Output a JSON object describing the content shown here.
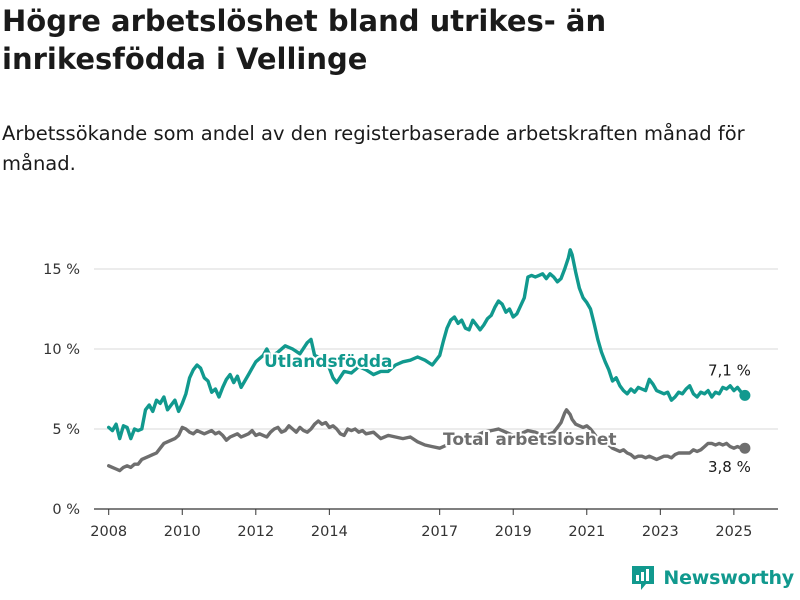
{
  "header": {
    "title": "Högre arbetslöshet bland utrikes- än inrikesfödda i Vellinge",
    "subtitle": "Arbetssökande som andel av den registerbaserade arbetskraften månad för månad."
  },
  "brand": {
    "name": "Newsworthy",
    "icon": "newsworthy-logo-icon"
  },
  "chart_data": {
    "type": "line",
    "title": "Högre arbetslöshet bland utrikes- än inrikesfödda i Vellinge",
    "subtitle": "Arbetssökande som andel av den registerbaserade arbetskraften månad för månad.",
    "xlabel": "",
    "ylabel": "",
    "xlim": [
      2007.6,
      2026.2
    ],
    "ylim": [
      0,
      17.5
    ],
    "grid": true,
    "x_ticks": [
      2008,
      2010,
      2012,
      2014,
      2017,
      2019,
      2021,
      2023,
      2025
    ],
    "x_tick_labels": [
      "2008",
      "2010",
      "2012",
      "2014",
      "2017",
      "2019",
      "2021",
      "2023",
      "2025"
    ],
    "y_ticks": [
      0,
      5,
      10,
      15
    ],
    "y_tick_labels": [
      "0 %",
      "5 %",
      "10 %",
      "15 %"
    ],
    "series": [
      {
        "name": "Utlandsfödda",
        "color": "#11998e",
        "end_label": "7,1 %",
        "points": [
          [
            2008.0,
            5.1
          ],
          [
            2008.1,
            4.9
          ],
          [
            2008.2,
            5.3
          ],
          [
            2008.3,
            4.4
          ],
          [
            2008.4,
            5.2
          ],
          [
            2008.5,
            5.1
          ],
          [
            2008.6,
            4.4
          ],
          [
            2008.7,
            5.0
          ],
          [
            2008.8,
            4.9
          ],
          [
            2008.9,
            5.0
          ],
          [
            2009.0,
            6.2
          ],
          [
            2009.1,
            6.5
          ],
          [
            2009.2,
            6.1
          ],
          [
            2009.3,
            6.8
          ],
          [
            2009.4,
            6.6
          ],
          [
            2009.5,
            7.0
          ],
          [
            2009.6,
            6.2
          ],
          [
            2009.7,
            6.5
          ],
          [
            2009.8,
            6.8
          ],
          [
            2009.9,
            6.1
          ],
          [
            2010.0,
            6.6
          ],
          [
            2010.1,
            7.2
          ],
          [
            2010.2,
            8.2
          ],
          [
            2010.3,
            8.7
          ],
          [
            2010.4,
            9.0
          ],
          [
            2010.5,
            8.8
          ],
          [
            2010.6,
            8.2
          ],
          [
            2010.7,
            8.0
          ],
          [
            2010.8,
            7.3
          ],
          [
            2010.9,
            7.5
          ],
          [
            2011.0,
            7.0
          ],
          [
            2011.1,
            7.6
          ],
          [
            2011.2,
            8.1
          ],
          [
            2011.3,
            8.4
          ],
          [
            2011.4,
            7.9
          ],
          [
            2011.5,
            8.3
          ],
          [
            2011.6,
            7.6
          ],
          [
            2011.7,
            8.0
          ],
          [
            2011.8,
            8.4
          ],
          [
            2011.9,
            8.8
          ],
          [
            2012.0,
            9.2
          ],
          [
            2012.2,
            9.6
          ],
          [
            2012.3,
            10.0
          ],
          [
            2012.4,
            9.5
          ],
          [
            2012.6,
            9.8
          ],
          [
            2012.8,
            10.2
          ],
          [
            2013.0,
            10.0
          ],
          [
            2013.2,
            9.7
          ],
          [
            2013.4,
            10.4
          ],
          [
            2013.5,
            10.6
          ],
          [
            2013.6,
            9.6
          ],
          [
            2013.8,
            9.4
          ],
          [
            2014.0,
            8.8
          ],
          [
            2014.1,
            8.2
          ],
          [
            2014.2,
            7.9
          ],
          [
            2014.4,
            8.6
          ],
          [
            2014.6,
            8.5
          ],
          [
            2014.8,
            8.9
          ],
          [
            2015.0,
            8.7
          ],
          [
            2015.2,
            8.4
          ],
          [
            2015.4,
            8.6
          ],
          [
            2015.6,
            8.6
          ],
          [
            2015.8,
            9.0
          ],
          [
            2016.0,
            9.2
          ],
          [
            2016.2,
            9.3
          ],
          [
            2016.4,
            9.5
          ],
          [
            2016.6,
            9.3
          ],
          [
            2016.8,
            9.0
          ],
          [
            2017.0,
            9.6
          ],
          [
            2017.1,
            10.5
          ],
          [
            2017.2,
            11.3
          ],
          [
            2017.3,
            11.8
          ],
          [
            2017.4,
            12.0
          ],
          [
            2017.5,
            11.6
          ],
          [
            2017.6,
            11.8
          ],
          [
            2017.7,
            11.3
          ],
          [
            2017.8,
            11.2
          ],
          [
            2017.9,
            11.8
          ],
          [
            2018.0,
            11.5
          ],
          [
            2018.1,
            11.2
          ],
          [
            2018.2,
            11.5
          ],
          [
            2018.3,
            11.9
          ],
          [
            2018.4,
            12.1
          ],
          [
            2018.5,
            12.6
          ],
          [
            2018.6,
            13.0
          ],
          [
            2018.7,
            12.8
          ],
          [
            2018.8,
            12.3
          ],
          [
            2018.9,
            12.5
          ],
          [
            2019.0,
            12.0
          ],
          [
            2019.1,
            12.2
          ],
          [
            2019.2,
            12.7
          ],
          [
            2019.3,
            13.2
          ],
          [
            2019.4,
            14.5
          ],
          [
            2019.5,
            14.6
          ],
          [
            2019.6,
            14.5
          ],
          [
            2019.7,
            14.6
          ],
          [
            2019.8,
            14.7
          ],
          [
            2019.9,
            14.4
          ],
          [
            2020.0,
            14.7
          ],
          [
            2020.1,
            14.5
          ],
          [
            2020.2,
            14.2
          ],
          [
            2020.3,
            14.4
          ],
          [
            2020.4,
            15.0
          ],
          [
            2020.5,
            15.7
          ],
          [
            2020.55,
            16.2
          ],
          [
            2020.6,
            15.9
          ],
          [
            2020.7,
            14.8
          ],
          [
            2020.8,
            13.8
          ],
          [
            2020.9,
            13.2
          ],
          [
            2021.0,
            12.9
          ],
          [
            2021.1,
            12.5
          ],
          [
            2021.2,
            11.6
          ],
          [
            2021.3,
            10.6
          ],
          [
            2021.4,
            9.8
          ],
          [
            2021.5,
            9.2
          ],
          [
            2021.6,
            8.7
          ],
          [
            2021.7,
            8.0
          ],
          [
            2021.8,
            8.2
          ],
          [
            2021.9,
            7.7
          ],
          [
            2022.0,
            7.4
          ],
          [
            2022.1,
            7.2
          ],
          [
            2022.2,
            7.5
          ],
          [
            2022.3,
            7.3
          ],
          [
            2022.4,
            7.6
          ],
          [
            2022.5,
            7.5
          ],
          [
            2022.6,
            7.4
          ],
          [
            2022.7,
            8.1
          ],
          [
            2022.8,
            7.8
          ],
          [
            2022.9,
            7.4
          ],
          [
            2023.0,
            7.3
          ],
          [
            2023.1,
            7.2
          ],
          [
            2023.2,
            7.3
          ],
          [
            2023.3,
            6.8
          ],
          [
            2023.4,
            7.0
          ],
          [
            2023.5,
            7.3
          ],
          [
            2023.6,
            7.2
          ],
          [
            2023.7,
            7.5
          ],
          [
            2023.8,
            7.7
          ],
          [
            2023.9,
            7.2
          ],
          [
            2024.0,
            7.0
          ],
          [
            2024.1,
            7.3
          ],
          [
            2024.2,
            7.2
          ],
          [
            2024.3,
            7.4
          ],
          [
            2024.4,
            7.0
          ],
          [
            2024.5,
            7.3
          ],
          [
            2024.6,
            7.2
          ],
          [
            2024.7,
            7.6
          ],
          [
            2024.8,
            7.5
          ],
          [
            2024.9,
            7.7
          ],
          [
            2025.0,
            7.4
          ],
          [
            2025.1,
            7.6
          ],
          [
            2025.2,
            7.3
          ],
          [
            2025.3,
            7.1
          ]
        ]
      },
      {
        "name": "Total arbetslöshet",
        "color": "#6e6e6e",
        "end_label": "3,8 %",
        "points": [
          [
            2008.0,
            2.7
          ],
          [
            2008.1,
            2.6
          ],
          [
            2008.2,
            2.5
          ],
          [
            2008.3,
            2.4
          ],
          [
            2008.4,
            2.6
          ],
          [
            2008.5,
            2.7
          ],
          [
            2008.6,
            2.6
          ],
          [
            2008.7,
            2.8
          ],
          [
            2008.8,
            2.8
          ],
          [
            2008.9,
            3.1
          ],
          [
            2009.0,
            3.2
          ],
          [
            2009.1,
            3.3
          ],
          [
            2009.2,
            3.4
          ],
          [
            2009.3,
            3.5
          ],
          [
            2009.4,
            3.8
          ],
          [
            2009.5,
            4.1
          ],
          [
            2009.6,
            4.2
          ],
          [
            2009.7,
            4.3
          ],
          [
            2009.8,
            4.4
          ],
          [
            2009.9,
            4.6
          ],
          [
            2010.0,
            5.1
          ],
          [
            2010.1,
            5.0
          ],
          [
            2010.2,
            4.8
          ],
          [
            2010.3,
            4.7
          ],
          [
            2010.4,
            4.9
          ],
          [
            2010.5,
            4.8
          ],
          [
            2010.6,
            4.7
          ],
          [
            2010.7,
            4.8
          ],
          [
            2010.8,
            4.9
          ],
          [
            2010.9,
            4.7
          ],
          [
            2011.0,
            4.8
          ],
          [
            2011.1,
            4.6
          ],
          [
            2011.2,
            4.3
          ],
          [
            2011.3,
            4.5
          ],
          [
            2011.4,
            4.6
          ],
          [
            2011.5,
            4.7
          ],
          [
            2011.6,
            4.5
          ],
          [
            2011.7,
            4.6
          ],
          [
            2011.8,
            4.7
          ],
          [
            2011.9,
            4.9
          ],
          [
            2012.0,
            4.6
          ],
          [
            2012.1,
            4.7
          ],
          [
            2012.2,
            4.6
          ],
          [
            2012.3,
            4.5
          ],
          [
            2012.4,
            4.8
          ],
          [
            2012.5,
            5.0
          ],
          [
            2012.6,
            5.1
          ],
          [
            2012.7,
            4.8
          ],
          [
            2012.8,
            4.9
          ],
          [
            2012.9,
            5.2
          ],
          [
            2013.0,
            5.0
          ],
          [
            2013.1,
            4.8
          ],
          [
            2013.2,
            5.1
          ],
          [
            2013.3,
            4.9
          ],
          [
            2013.4,
            4.8
          ],
          [
            2013.5,
            5.0
          ],
          [
            2013.6,
            5.3
          ],
          [
            2013.7,
            5.5
          ],
          [
            2013.8,
            5.3
          ],
          [
            2013.9,
            5.4
          ],
          [
            2014.0,
            5.1
          ],
          [
            2014.1,
            5.2
          ],
          [
            2014.2,
            5.0
          ],
          [
            2014.3,
            4.7
          ],
          [
            2014.4,
            4.6
          ],
          [
            2014.5,
            5.0
          ],
          [
            2014.6,
            4.9
          ],
          [
            2014.7,
            5.0
          ],
          [
            2014.8,
            4.8
          ],
          [
            2014.9,
            4.9
          ],
          [
            2015.0,
            4.7
          ],
          [
            2015.2,
            4.8
          ],
          [
            2015.4,
            4.4
          ],
          [
            2015.6,
            4.6
          ],
          [
            2015.8,
            4.5
          ],
          [
            2016.0,
            4.4
          ],
          [
            2016.2,
            4.5
          ],
          [
            2016.4,
            4.2
          ],
          [
            2016.6,
            4.0
          ],
          [
            2016.8,
            3.9
          ],
          [
            2017.0,
            3.8
          ],
          [
            2017.2,
            4.0
          ],
          [
            2017.4,
            4.2
          ],
          [
            2017.6,
            4.3
          ],
          [
            2017.8,
            4.5
          ],
          [
            2018.0,
            4.6
          ],
          [
            2018.2,
            4.8
          ],
          [
            2018.4,
            4.9
          ],
          [
            2018.6,
            5.0
          ],
          [
            2018.8,
            4.8
          ],
          [
            2019.0,
            4.6
          ],
          [
            2019.2,
            4.7
          ],
          [
            2019.4,
            4.9
          ],
          [
            2019.6,
            4.8
          ],
          [
            2019.8,
            4.6
          ],
          [
            2020.0,
            4.7
          ],
          [
            2020.1,
            4.8
          ],
          [
            2020.2,
            5.1
          ],
          [
            2020.3,
            5.4
          ],
          [
            2020.4,
            6.0
          ],
          [
            2020.45,
            6.2
          ],
          [
            2020.55,
            5.9
          ],
          [
            2020.6,
            5.6
          ],
          [
            2020.7,
            5.3
          ],
          [
            2020.8,
            5.2
          ],
          [
            2020.9,
            5.1
          ],
          [
            2021.0,
            5.2
          ],
          [
            2021.1,
            5.0
          ],
          [
            2021.2,
            4.7
          ],
          [
            2021.3,
            4.4
          ],
          [
            2021.4,
            4.2
          ],
          [
            2021.5,
            4.1
          ],
          [
            2021.6,
            4.0
          ],
          [
            2021.7,
            3.8
          ],
          [
            2021.8,
            3.7
          ],
          [
            2021.9,
            3.6
          ],
          [
            2022.0,
            3.7
          ],
          [
            2022.1,
            3.5
          ],
          [
            2022.2,
            3.4
          ],
          [
            2022.3,
            3.2
          ],
          [
            2022.4,
            3.3
          ],
          [
            2022.5,
            3.3
          ],
          [
            2022.6,
            3.2
          ],
          [
            2022.7,
            3.3
          ],
          [
            2022.8,
            3.2
          ],
          [
            2022.9,
            3.1
          ],
          [
            2023.0,
            3.2
          ],
          [
            2023.1,
            3.3
          ],
          [
            2023.2,
            3.3
          ],
          [
            2023.3,
            3.2
          ],
          [
            2023.4,
            3.4
          ],
          [
            2023.5,
            3.5
          ],
          [
            2023.6,
            3.5
          ],
          [
            2023.7,
            3.5
          ],
          [
            2023.8,
            3.5
          ],
          [
            2023.9,
            3.7
          ],
          [
            2024.0,
            3.6
          ],
          [
            2024.1,
            3.7
          ],
          [
            2024.2,
            3.9
          ],
          [
            2024.3,
            4.1
          ],
          [
            2024.4,
            4.1
          ],
          [
            2024.5,
            4.0
          ],
          [
            2024.6,
            4.1
          ],
          [
            2024.7,
            4.0
          ],
          [
            2024.8,
            4.1
          ],
          [
            2024.9,
            3.9
          ],
          [
            2025.0,
            3.8
          ],
          [
            2025.1,
            3.9
          ],
          [
            2025.2,
            3.8
          ],
          [
            2025.3,
            3.8
          ]
        ]
      }
    ]
  }
}
